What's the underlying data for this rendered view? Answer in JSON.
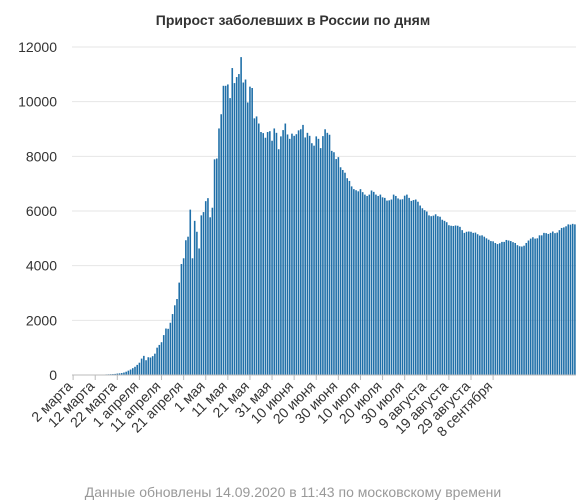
{
  "chart_data": {
    "type": "bar",
    "title": "Прирост заболевших в России по дням",
    "xlabel": "",
    "ylabel": "",
    "ylim": [
      0,
      12000
    ],
    "y_ticks": [
      0,
      2000,
      4000,
      6000,
      8000,
      10000,
      12000
    ],
    "grid": true,
    "bar_color": "#1f6fa8",
    "x_tick_labels": [
      "2 марта",
      "12 марта",
      "22 марта",
      "1 апреля",
      "11 апреля",
      "21 апреля",
      "1 мая",
      "11 мая",
      "21 мая",
      "31 мая",
      "10 июня",
      "20 июня",
      "30 июня",
      "10 июля",
      "20 июля",
      "30 июля",
      "9 августа",
      "19 августа",
      "29 августа",
      "8 сентября"
    ],
    "start_date": "2020-03-02",
    "values": [
      0,
      1,
      1,
      1,
      2,
      3,
      3,
      4,
      4,
      6,
      7,
      9,
      11,
      14,
      18,
      22,
      26,
      30,
      34,
      40,
      52,
      60,
      71,
      90,
      120,
      160,
      200,
      250,
      300,
      370,
      450,
      600,
      700,
      540,
      650,
      640,
      690,
      780,
      1000,
      1100,
      1200,
      1460,
      1700,
      1690,
      1910,
      2230,
      2550,
      2780,
      3380,
      4060,
      4270,
      4930,
      5060,
      6050,
      4270,
      5640,
      5240,
      4630,
      5840,
      5960,
      6360,
      6470,
      5770,
      6120,
      7890,
      7920,
      9020,
      9540,
      10580,
      10580,
      10630,
      10130,
      11230,
      10680,
      10900,
      11010,
      11630,
      10700,
      10810,
      9970,
      10550,
      10500,
      9390,
      9460,
      9200,
      8890,
      8850,
      8680,
      8890,
      8920,
      8570,
      9020,
      8860,
      8260,
      8730,
      8960,
      9200,
      8800,
      8640,
      8830,
      8750,
      8810,
      8950,
      8990,
      9150,
      8690,
      8860,
      8750,
      8480,
      8390,
      8730,
      8640,
      8300,
      8740,
      8990,
      8860,
      8790,
      8200,
      8150,
      7900,
      7970,
      7600,
      7500,
      7400,
      7200,
      7100,
      6900,
      6800,
      6760,
      6720,
      6800,
      6690,
      6600,
      6550,
      6600,
      6750,
      6700,
      6600,
      6550,
      6600,
      6500,
      6480,
      6380,
      6390,
      6420,
      6600,
      6550,
      6460,
      6420,
      6430,
      6560,
      6600,
      6480,
      6370,
      6400,
      6420,
      6340,
      6200,
      6100,
      6030,
      5980,
      5840,
      5810,
      5830,
      5880,
      5810,
      5790,
      5680,
      5640,
      5590,
      5480,
      5460,
      5450,
      5470,
      5460,
      5420,
      5300,
      5200,
      5240,
      5250,
      5240,
      5200,
      5210,
      5150,
      5100,
      5110,
      5060,
      5000,
      4950,
      4900,
      4890,
      4830,
      4790,
      4820,
      4870,
      4870,
      4940,
      4920,
      4900,
      4860,
      4830,
      4750,
      4710,
      4700,
      4730,
      4830,
      4920,
      4990,
      5040,
      4990,
      5000,
      5110,
      5110,
      5200,
      5190,
      5160,
      5200,
      5250,
      5190,
      5210,
      5300,
      5380,
      5400,
      5440,
      5510,
      5500,
      5530,
      5510
    ]
  },
  "footer": {
    "note": "Данные обновлены 14.09.2020 в 11:43 по московскому времени"
  }
}
